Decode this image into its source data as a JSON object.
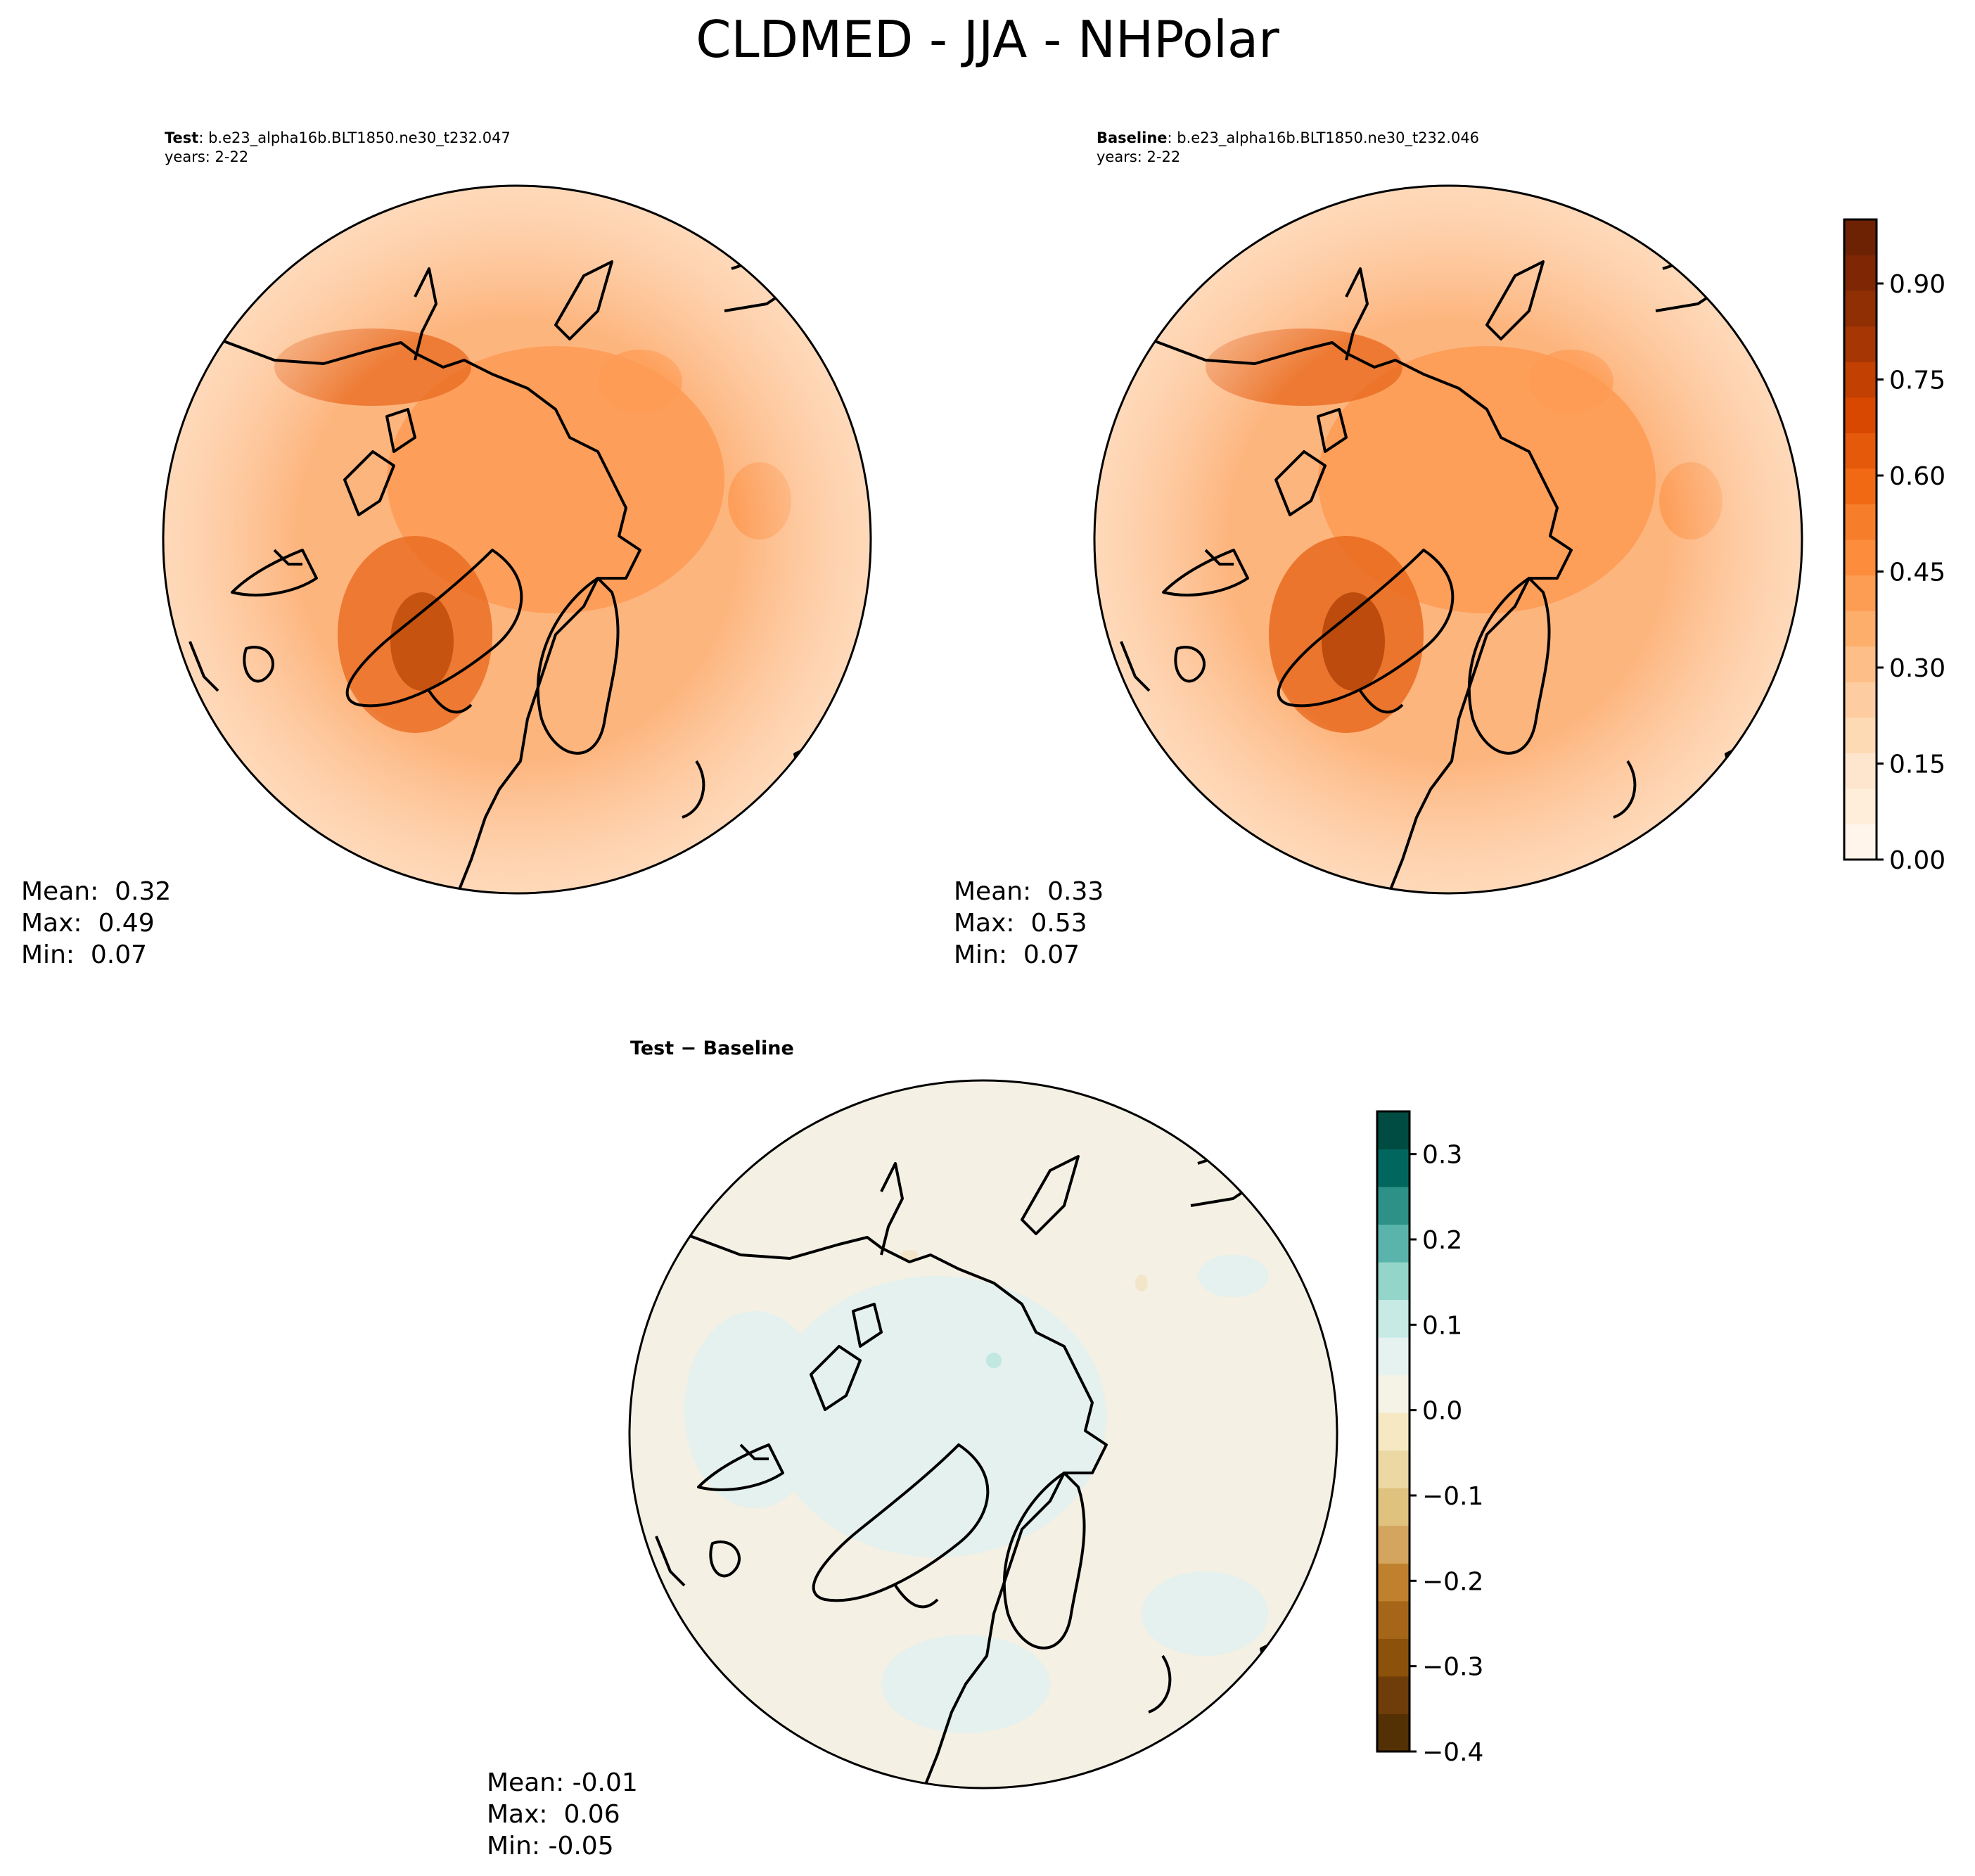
{
  "title": "CLDMED - JJA - NHPolar",
  "panels": {
    "test": {
      "label_bold": "Test",
      "label_rest": ": b.e23_alpha16b.BLT1850.ne30_t232.047",
      "years": "years: 2-22",
      "stats": {
        "mean": "Mean:  0.32",
        "max": "Max:  0.49",
        "min": "Min:  0.07"
      }
    },
    "baseline": {
      "label_bold": "Baseline",
      "label_rest": ": b.e23_alpha16b.BLT1850.ne30_t232.046",
      "years": "years: 2-22",
      "stats": {
        "mean": "Mean:  0.33",
        "max": "Max:  0.53",
        "min": "Min:  0.07"
      }
    },
    "diff": {
      "label_bold": "Test − Baseline",
      "stats": {
        "mean": "Mean: -0.01",
        "max": "Max:  0.06",
        "min": "Min: -0.05"
      }
    }
  },
  "colorbars": {
    "main": {
      "ticks": [
        "0.00",
        "0.15",
        "0.30",
        "0.45",
        "0.60",
        "0.75",
        "0.90"
      ],
      "range": [
        0,
        1.0
      ],
      "colormap": "Oranges",
      "colors": [
        "#fff5eb",
        "#ffeeda",
        "#fee6ce",
        "#fdd9b4",
        "#fdcca1",
        "#fdbe88",
        "#fdae6b",
        "#fd9c53",
        "#fd8d3c",
        "#f67d2a",
        "#f16913",
        "#e5590a",
        "#d94801",
        "#c14002",
        "#a63603",
        "#8f2f03",
        "#7f2704",
        "#6e2204"
      ]
    },
    "diff": {
      "ticks": [
        "0.3",
        "0.2",
        "0.1",
        "0.0",
        "−0.1",
        "−0.2",
        "−0.3",
        "−0.4"
      ],
      "range": [
        -0.4,
        0.35
      ],
      "colormap": "BrBG",
      "colors": [
        "#543005",
        "#6f3d09",
        "#8c510a",
        "#a6661a",
        "#bf812d",
        "#d3a55f",
        "#dfc27d",
        "#ebd8a3",
        "#f6e8c3",
        "#f5f2e6",
        "#e6f2ef",
        "#c7eae5",
        "#94d5c9",
        "#5ab4ac",
        "#2d9187",
        "#01665e",
        "#004c42"
      ]
    }
  },
  "maps": {
    "test": {
      "ocean": "#fdb57e",
      "mid": "#fd9a52",
      "high": "#e86a1f",
      "peak": "#c24f0c"
    },
    "baseline": {
      "ocean": "#fdb57e",
      "mid": "#fd9a52",
      "high": "#e86a1f",
      "peak": "#b8470a"
    },
    "diff": {
      "base": "#f4f0e4",
      "pos": "#e4f1ee",
      "neg": "#f3e6c8",
      "dot": "#c0e7e0"
    }
  }
}
